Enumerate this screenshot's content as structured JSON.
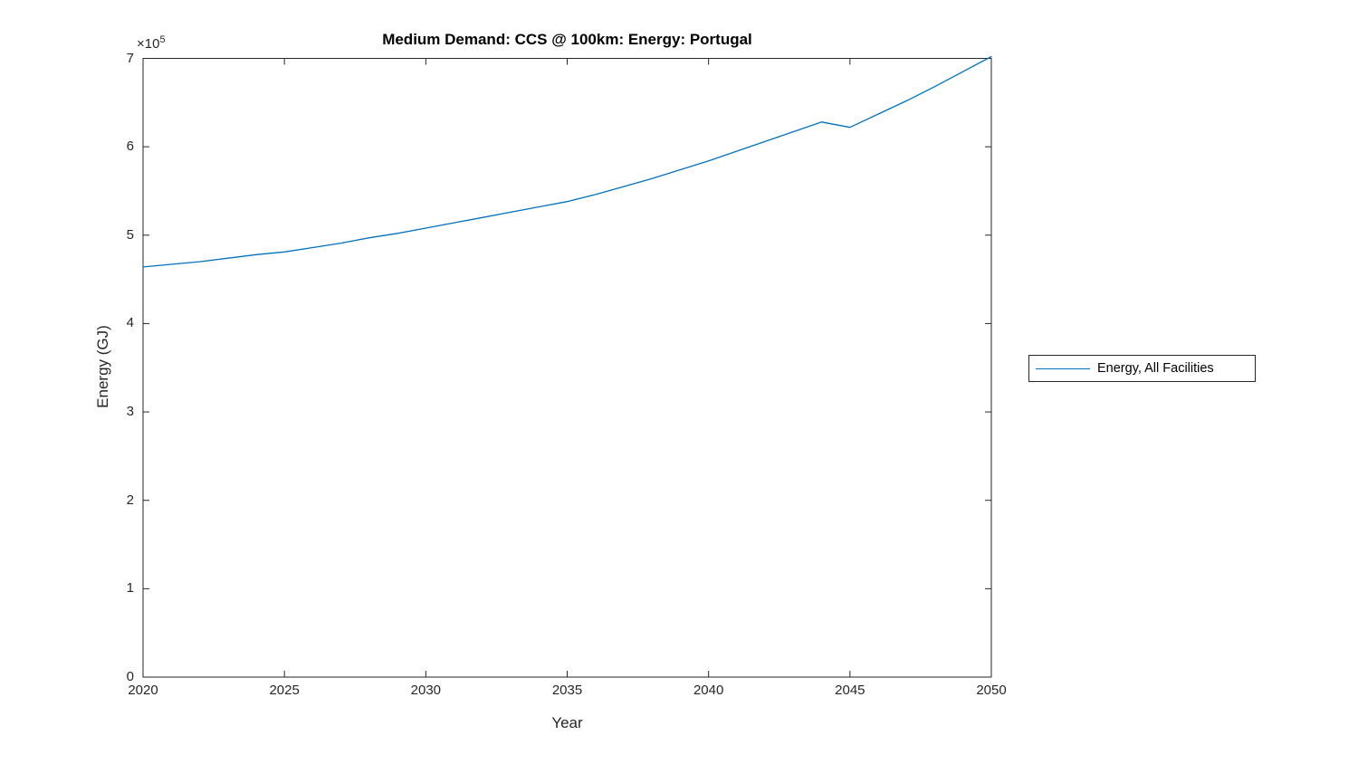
{
  "figure": {
    "title": "Medium Demand: CCS @ 100km: Energy: Portugal",
    "background": "#ffffff"
  },
  "axes": {
    "x": {
      "label": "Year",
      "tick_labels": [
        "2020",
        "2025",
        "2030",
        "2035",
        "2040",
        "2045",
        "2050"
      ],
      "tick_values": [
        2020,
        2025,
        2030,
        2035,
        2040,
        2045,
        2050
      ]
    },
    "y": {
      "label": "Energy (GJ)",
      "tick_labels": [
        "0",
        "1",
        "2",
        "3",
        "4",
        "5",
        "6",
        "7"
      ],
      "tick_display_values": [
        0,
        1,
        2,
        3,
        4,
        5,
        6,
        7
      ],
      "multiplier": 100000,
      "exponent_base": "×10",
      "exponent_power": "5"
    }
  },
  "legend": {
    "entries": [
      {
        "label": "Energy, All Facilities",
        "color": "#0072BD"
      }
    ],
    "position": "right-outside",
    "border_color": "#262626"
  },
  "colors": {
    "line": "#0072BD",
    "axis": "#262626",
    "title_text": "#000000",
    "tick_text": "#262626",
    "background": "#ffffff"
  },
  "chart_data": {
    "type": "line",
    "title": "Medium Demand: CCS @ 100km: Energy: Portugal",
    "xlabel": "Year",
    "ylabel": "Energy (GJ)",
    "xlim": [
      2020,
      2050
    ],
    "ylim": [
      0,
      700000
    ],
    "grid": false,
    "legend_position": "right-outside",
    "series": [
      {
        "name": "Energy, All Facilities",
        "color": "#0072BD",
        "x": [
          2020,
          2021,
          2022,
          2023,
          2024,
          2025,
          2026,
          2027,
          2028,
          2029,
          2030,
          2031,
          2032,
          2033,
          2034,
          2035,
          2036,
          2037,
          2038,
          2039,
          2040,
          2041,
          2042,
          2043,
          2044,
          2045,
          2046,
          2047,
          2048,
          2049,
          2050
        ],
        "y": [
          464000,
          467000,
          470000,
          474000,
          478000,
          481000,
          486000,
          491000,
          497000,
          502000,
          508000,
          514000,
          520000,
          526000,
          532000,
          538000,
          546000,
          555000,
          564000,
          574000,
          584000,
          595000,
          606000,
          617000,
          628000,
          622000,
          637000,
          652000,
          668000,
          685000,
          702000
        ]
      }
    ]
  }
}
